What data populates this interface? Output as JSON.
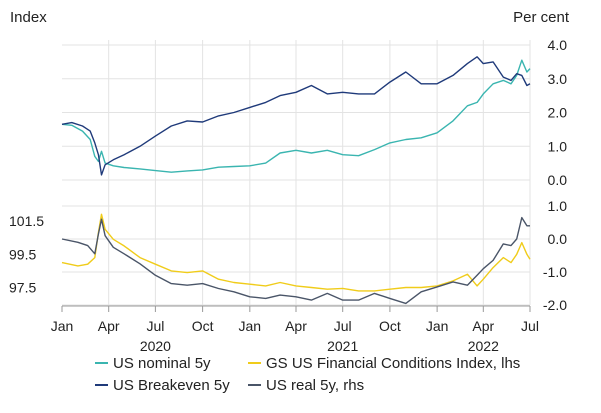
{
  "chart_data": [
    {
      "type": "line",
      "panel": "top",
      "left_axis_label": "Index",
      "right_axis_label": "Per cent",
      "y_right_ticks": [
        "4.0",
        "3.0",
        "2.0",
        "1.0",
        "0.0"
      ],
      "ylim": [
        0,
        4
      ],
      "x_range": [
        "2020-01-01",
        "2022-07-15"
      ],
      "series": [
        {
          "name": "US nominal 5y",
          "color": "#3ab5b0",
          "points": [
            [
              "2020-01-01",
              1.65
            ],
            [
              "2020-01-20",
              1.62
            ],
            [
              "2020-02-10",
              1.45
            ],
            [
              "2020-02-25",
              1.2
            ],
            [
              "2020-03-05",
              0.7
            ],
            [
              "2020-03-12",
              0.55
            ],
            [
              "2020-03-18",
              0.85
            ],
            [
              "2020-03-25",
              0.5
            ],
            [
              "2020-04-10",
              0.42
            ],
            [
              "2020-05-01",
              0.37
            ],
            [
              "2020-06-01",
              0.33
            ],
            [
              "2020-07-01",
              0.28
            ],
            [
              "2020-08-01",
              0.23
            ],
            [
              "2020-09-01",
              0.27
            ],
            [
              "2020-10-01",
              0.3
            ],
            [
              "2020-11-01",
              0.38
            ],
            [
              "2020-12-01",
              0.4
            ],
            [
              "2021-01-01",
              0.42
            ],
            [
              "2021-02-01",
              0.5
            ],
            [
              "2021-03-01",
              0.8
            ],
            [
              "2021-04-01",
              0.88
            ],
            [
              "2021-05-01",
              0.8
            ],
            [
              "2021-06-01",
              0.88
            ],
            [
              "2021-07-01",
              0.75
            ],
            [
              "2021-08-01",
              0.72
            ],
            [
              "2021-09-01",
              0.9
            ],
            [
              "2021-10-01",
              1.1
            ],
            [
              "2021-11-01",
              1.2
            ],
            [
              "2021-12-01",
              1.25
            ],
            [
              "2022-01-01",
              1.4
            ],
            [
              "2022-02-01",
              1.75
            ],
            [
              "2022-03-01",
              2.2
            ],
            [
              "2022-03-20",
              2.3
            ],
            [
              "2022-04-01",
              2.55
            ],
            [
              "2022-04-20",
              2.85
            ],
            [
              "2022-05-10",
              2.95
            ],
            [
              "2022-05-25",
              2.85
            ],
            [
              "2022-06-05",
              3.1
            ],
            [
              "2022-06-15",
              3.55
            ],
            [
              "2022-06-25",
              3.2
            ],
            [
              "2022-07-01",
              3.3
            ]
          ]
        },
        {
          "name": "US Breakeven 5y",
          "color": "#1f3a7a",
          "points": [
            [
              "2020-01-01",
              1.65
            ],
            [
              "2020-01-20",
              1.7
            ],
            [
              "2020-02-10",
              1.6
            ],
            [
              "2020-02-25",
              1.45
            ],
            [
              "2020-03-05",
              1.1
            ],
            [
              "2020-03-12",
              0.75
            ],
            [
              "2020-03-18",
              0.15
            ],
            [
              "2020-03-25",
              0.45
            ],
            [
              "2020-04-10",
              0.6
            ],
            [
              "2020-05-01",
              0.75
            ],
            [
              "2020-06-01",
              1.0
            ],
            [
              "2020-07-01",
              1.3
            ],
            [
              "2020-08-01",
              1.6
            ],
            [
              "2020-09-01",
              1.75
            ],
            [
              "2020-10-01",
              1.72
            ],
            [
              "2020-11-01",
              1.9
            ],
            [
              "2020-12-01",
              2.0
            ],
            [
              "2021-01-01",
              2.15
            ],
            [
              "2021-02-01",
              2.3
            ],
            [
              "2021-03-01",
              2.5
            ],
            [
              "2021-04-01",
              2.6
            ],
            [
              "2021-05-01",
              2.8
            ],
            [
              "2021-06-01",
              2.55
            ],
            [
              "2021-07-01",
              2.6
            ],
            [
              "2021-08-01",
              2.55
            ],
            [
              "2021-09-01",
              2.55
            ],
            [
              "2021-10-01",
              2.9
            ],
            [
              "2021-11-01",
              3.2
            ],
            [
              "2021-12-01",
              2.85
            ],
            [
              "2022-01-01",
              2.85
            ],
            [
              "2022-02-01",
              3.1
            ],
            [
              "2022-03-01",
              3.45
            ],
            [
              "2022-03-20",
              3.65
            ],
            [
              "2022-04-01",
              3.45
            ],
            [
              "2022-04-20",
              3.5
            ],
            [
              "2022-05-10",
              3.05
            ],
            [
              "2022-05-25",
              2.95
            ],
            [
              "2022-06-05",
              3.15
            ],
            [
              "2022-06-15",
              3.1
            ],
            [
              "2022-06-25",
              2.8
            ],
            [
              "2022-07-01",
              2.85
            ]
          ]
        }
      ]
    },
    {
      "type": "line",
      "panel": "bottom",
      "y_left_ticks": [
        "101.5",
        "99.5",
        "97.5"
      ],
      "y_right_ticks": [
        "1.0",
        "0.0",
        "-1.0",
        "-2.0"
      ],
      "ylim_left": [
        96.45,
        102.4
      ],
      "ylim_right": [
        -2.0,
        1.0
      ],
      "x_range": [
        "2020-01-01",
        "2022-07-15"
      ],
      "series": [
        {
          "name": "GS US Financial Conditions Index, lhs",
          "axis": "left",
          "color": "#f0cc1a",
          "points": [
            [
              "2020-01-01",
              99.0
            ],
            [
              "2020-02-01",
              98.8
            ],
            [
              "2020-02-20",
              98.9
            ],
            [
              "2020-03-05",
              99.3
            ],
            [
              "2020-03-12",
              100.8
            ],
            [
              "2020-03-18",
              101.9
            ],
            [
              "2020-03-25",
              101.0
            ],
            [
              "2020-04-10",
              100.4
            ],
            [
              "2020-05-01",
              100.0
            ],
            [
              "2020-06-01",
              99.3
            ],
            [
              "2020-07-01",
              98.9
            ],
            [
              "2020-08-01",
              98.5
            ],
            [
              "2020-09-01",
              98.4
            ],
            [
              "2020-10-01",
              98.5
            ],
            [
              "2020-11-01",
              98.0
            ],
            [
              "2020-12-01",
              97.8
            ],
            [
              "2021-01-01",
              97.7
            ],
            [
              "2021-02-01",
              97.6
            ],
            [
              "2021-03-01",
              97.8
            ],
            [
              "2021-04-01",
              97.6
            ],
            [
              "2021-05-01",
              97.5
            ],
            [
              "2021-06-01",
              97.4
            ],
            [
              "2021-07-01",
              97.45
            ],
            [
              "2021-08-01",
              97.3
            ],
            [
              "2021-09-01",
              97.3
            ],
            [
              "2021-10-01",
              97.4
            ],
            [
              "2021-11-01",
              97.5
            ],
            [
              "2021-12-01",
              97.5
            ],
            [
              "2022-01-01",
              97.6
            ],
            [
              "2022-02-01",
              97.9
            ],
            [
              "2022-03-01",
              98.3
            ],
            [
              "2022-03-20",
              97.6
            ],
            [
              "2022-04-01",
              98.0
            ],
            [
              "2022-04-20",
              98.7
            ],
            [
              "2022-05-10",
              99.3
            ],
            [
              "2022-05-25",
              99.0
            ],
            [
              "2022-06-05",
              99.5
            ],
            [
              "2022-06-15",
              100.2
            ],
            [
              "2022-06-25",
              99.5
            ],
            [
              "2022-07-01",
              99.2
            ]
          ]
        },
        {
          "name": "US real 5y, rhs",
          "axis": "right",
          "color": "#4a5568",
          "points": [
            [
              "2020-01-01",
              0.0
            ],
            [
              "2020-02-01",
              -0.1
            ],
            [
              "2020-02-20",
              -0.2
            ],
            [
              "2020-03-05",
              -0.45
            ],
            [
              "2020-03-12",
              0.15
            ],
            [
              "2020-03-18",
              0.6
            ],
            [
              "2020-03-25",
              0.1
            ],
            [
              "2020-04-10",
              -0.25
            ],
            [
              "2020-05-01",
              -0.45
            ],
            [
              "2020-06-01",
              -0.75
            ],
            [
              "2020-07-01",
              -1.1
            ],
            [
              "2020-08-01",
              -1.35
            ],
            [
              "2020-09-01",
              -1.4
            ],
            [
              "2020-10-01",
              -1.35
            ],
            [
              "2020-11-01",
              -1.5
            ],
            [
              "2020-12-01",
              -1.6
            ],
            [
              "2021-01-01",
              -1.75
            ],
            [
              "2021-02-01",
              -1.8
            ],
            [
              "2021-03-01",
              -1.7
            ],
            [
              "2021-04-01",
              -1.75
            ],
            [
              "2021-05-01",
              -1.85
            ],
            [
              "2021-06-01",
              -1.65
            ],
            [
              "2021-07-01",
              -1.85
            ],
            [
              "2021-08-01",
              -1.85
            ],
            [
              "2021-09-01",
              -1.65
            ],
            [
              "2021-10-01",
              -1.8
            ],
            [
              "2021-11-01",
              -1.95
            ],
            [
              "2021-12-01",
              -1.6
            ],
            [
              "2022-01-01",
              -1.45
            ],
            [
              "2022-02-01",
              -1.3
            ],
            [
              "2022-03-01",
              -1.4
            ],
            [
              "2022-03-20",
              -1.1
            ],
            [
              "2022-04-01",
              -0.9
            ],
            [
              "2022-04-20",
              -0.65
            ],
            [
              "2022-05-10",
              -0.15
            ],
            [
              "2022-05-25",
              -0.2
            ],
            [
              "2022-06-05",
              0.0
            ],
            [
              "2022-06-15",
              0.65
            ],
            [
              "2022-06-25",
              0.4
            ],
            [
              "2022-07-01",
              0.4
            ]
          ]
        }
      ]
    }
  ],
  "x_axis": {
    "ticks": [
      {
        "date": "2020-01-01",
        "label": "Jan"
      },
      {
        "date": "2020-04-01",
        "label": "Apr"
      },
      {
        "date": "2020-07-01",
        "label": "Jul"
      },
      {
        "date": "2020-10-01",
        "label": "Oct"
      },
      {
        "date": "2021-01-01",
        "label": "Jan"
      },
      {
        "date": "2021-04-01",
        "label": "Apr"
      },
      {
        "date": "2021-07-01",
        "label": "Jul"
      },
      {
        "date": "2021-10-01",
        "label": "Oct"
      },
      {
        "date": "2022-01-01",
        "label": "Jan"
      },
      {
        "date": "2022-04-01",
        "label": "Apr"
      },
      {
        "date": "2022-07-01",
        "label": "Jul"
      }
    ],
    "years": [
      {
        "label": "2020",
        "date": "2020-07-01"
      },
      {
        "label": "2021",
        "date": "2021-07-01"
      },
      {
        "label": "2022",
        "date": "2022-04-01"
      }
    ]
  },
  "legend": [
    {
      "label": "US nominal 5y",
      "color": "#3ab5b0"
    },
    {
      "label": "GS US Financial Conditions Index, lhs",
      "color": "#f0cc1a"
    },
    {
      "label": "US Breakeven 5y",
      "color": "#1f3a7a"
    },
    {
      "label": "US real 5y, rhs",
      "color": "#4a5568"
    }
  ]
}
